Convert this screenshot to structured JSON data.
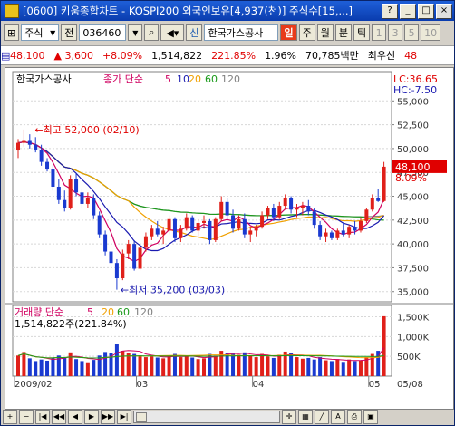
{
  "window": {
    "title": "[0600] 키움종합차트 - KOSPI200 외국인보유[4,937(천)] 주식수[15,...]",
    "buttons": [
      "?",
      "_",
      "□",
      "×"
    ]
  },
  "toolbar": {
    "market": "주식",
    "prev": "전",
    "code": "036460",
    "name": "한국가스공사",
    "periods": [
      "일",
      "주",
      "월",
      "분",
      "틱"
    ],
    "selected_period": "일",
    "nums": [
      "1",
      "3",
      "5",
      "10"
    ]
  },
  "quote": {
    "price": "48,100",
    "change": "▲ 3,600",
    "change_pct": "+8.09%",
    "volume": "1,514,822",
    "vol_ratio": "221.85%",
    "ratio": "1.96%",
    "amount": "70,785백만",
    "label": "최우선",
    "last": "48"
  },
  "chart": {
    "legend_main": "한국가스공사",
    "legend_ma": "종가 단순",
    "ma_periods": [
      "5",
      "10",
      "20",
      "60",
      "120"
    ],
    "ma_colors": [
      "#d00060",
      "#1a1ab0",
      "#f0a000",
      "#1a9a1a",
      "#808080"
    ],
    "lc_label": "LC:36.65",
    "hc_label": "HC:-7.50",
    "price_badge": "48,100",
    "pct_label": "8.09%",
    "high_label": "최고 52,000 (02/10)",
    "low_label": "최저 35,200 (03/03)",
    "vol_legend": "거래량 단순",
    "vol_periods": [
      "5",
      "20",
      "60",
      "120"
    ],
    "vol_value": "1,514,822주(221.84%)",
    "price_ticks": [
      "55,000",
      "52,500",
      "50,000",
      "47,500",
      "45,000",
      "42,500",
      "40,000",
      "37,500",
      "35,000"
    ],
    "vol_ticks": [
      "1,500K",
      "1,000K",
      "500K"
    ],
    "x_labels": [
      "2009/02",
      "03",
      "04",
      "05",
      "05/08"
    ]
  },
  "chart_data": {
    "type": "candlestick",
    "ylim": [
      34500,
      57500
    ],
    "vol_ylim": [
      0,
      1650000
    ],
    "candles": [
      {
        "o": 49800,
        "h": 51000,
        "l": 49000,
        "c": 50600
      },
      {
        "o": 50600,
        "h": 52000,
        "l": 50200,
        "c": 50800
      },
      {
        "o": 50800,
        "h": 51500,
        "l": 50000,
        "c": 50400
      },
      {
        "o": 50400,
        "h": 51200,
        "l": 49600,
        "c": 49900
      },
      {
        "o": 49900,
        "h": 50400,
        "l": 48200,
        "c": 48600
      },
      {
        "o": 48600,
        "h": 49000,
        "l": 47600,
        "c": 47800
      },
      {
        "o": 47800,
        "h": 48200,
        "l": 45600,
        "c": 46000
      },
      {
        "o": 46000,
        "h": 46800,
        "l": 44200,
        "c": 44600
      },
      {
        "o": 44600,
        "h": 45600,
        "l": 43400,
        "c": 43800
      },
      {
        "o": 43800,
        "h": 47200,
        "l": 43600,
        "c": 46800
      },
      {
        "o": 46800,
        "h": 47400,
        "l": 45000,
        "c": 45400
      },
      {
        "o": 45400,
        "h": 45800,
        "l": 43800,
        "c": 44200
      },
      {
        "o": 44200,
        "h": 45400,
        "l": 43800,
        "c": 44800
      },
      {
        "o": 44800,
        "h": 45200,
        "l": 42600,
        "c": 43000
      },
      {
        "o": 43000,
        "h": 43400,
        "l": 40600,
        "c": 41000
      },
      {
        "o": 41000,
        "h": 41400,
        "l": 38800,
        "c": 39200
      },
      {
        "o": 39200,
        "h": 39800,
        "l": 37600,
        "c": 38000
      },
      {
        "o": 38000,
        "h": 38400,
        "l": 35200,
        "c": 36400
      },
      {
        "o": 36400,
        "h": 39400,
        "l": 36200,
        "c": 39000
      },
      {
        "o": 39000,
        "h": 40400,
        "l": 38400,
        "c": 40000
      },
      {
        "o": 40000,
        "h": 40400,
        "l": 37200,
        "c": 37400
      },
      {
        "o": 37400,
        "h": 39800,
        "l": 37200,
        "c": 39600
      },
      {
        "o": 39600,
        "h": 41200,
        "l": 39200,
        "c": 40800
      },
      {
        "o": 40800,
        "h": 42000,
        "l": 40400,
        "c": 41600
      },
      {
        "o": 41600,
        "h": 42400,
        "l": 40800,
        "c": 41000
      },
      {
        "o": 41000,
        "h": 41800,
        "l": 40000,
        "c": 41400
      },
      {
        "o": 41400,
        "h": 43000,
        "l": 41000,
        "c": 42600
      },
      {
        "o": 42600,
        "h": 42800,
        "l": 40200,
        "c": 40600
      },
      {
        "o": 40600,
        "h": 42000,
        "l": 40200,
        "c": 41600
      },
      {
        "o": 41600,
        "h": 43200,
        "l": 41400,
        "c": 42800
      },
      {
        "o": 42800,
        "h": 43000,
        "l": 41200,
        "c": 41400
      },
      {
        "o": 41400,
        "h": 42600,
        "l": 40800,
        "c": 42200
      },
      {
        "o": 42200,
        "h": 43000,
        "l": 41600,
        "c": 42400
      },
      {
        "o": 42400,
        "h": 42600,
        "l": 40000,
        "c": 40400
      },
      {
        "o": 40400,
        "h": 42800,
        "l": 40200,
        "c": 42600
      },
      {
        "o": 42600,
        "h": 45000,
        "l": 42400,
        "c": 44400
      },
      {
        "o": 44400,
        "h": 44800,
        "l": 42600,
        "c": 43000
      },
      {
        "o": 43000,
        "h": 43600,
        "l": 41200,
        "c": 41600
      },
      {
        "o": 41600,
        "h": 43000,
        "l": 41400,
        "c": 42600
      },
      {
        "o": 42600,
        "h": 43200,
        "l": 40600,
        "c": 41000
      },
      {
        "o": 41000,
        "h": 41800,
        "l": 40200,
        "c": 41400
      },
      {
        "o": 41400,
        "h": 42000,
        "l": 40800,
        "c": 41800
      },
      {
        "o": 41800,
        "h": 43400,
        "l": 41600,
        "c": 43000
      },
      {
        "o": 43000,
        "h": 44000,
        "l": 42600,
        "c": 43800
      },
      {
        "o": 43800,
        "h": 44200,
        "l": 42400,
        "c": 42800
      },
      {
        "o": 42800,
        "h": 44400,
        "l": 42600,
        "c": 44000
      },
      {
        "o": 44000,
        "h": 45200,
        "l": 43600,
        "c": 44800
      },
      {
        "o": 44800,
        "h": 45000,
        "l": 43200,
        "c": 43600
      },
      {
        "o": 43600,
        "h": 44200,
        "l": 42800,
        "c": 43800
      },
      {
        "o": 43800,
        "h": 44400,
        "l": 43000,
        "c": 44000
      },
      {
        "o": 44000,
        "h": 44600,
        "l": 43000,
        "c": 43400
      },
      {
        "o": 43400,
        "h": 43800,
        "l": 41600,
        "c": 42000
      },
      {
        "o": 42000,
        "h": 42400,
        "l": 40400,
        "c": 40800
      },
      {
        "o": 40800,
        "h": 41600,
        "l": 40200,
        "c": 41200
      },
      {
        "o": 41200,
        "h": 41400,
        "l": 40400,
        "c": 40600
      },
      {
        "o": 40600,
        "h": 41600,
        "l": 40400,
        "c": 41400
      },
      {
        "o": 41400,
        "h": 42200,
        "l": 40800,
        "c": 41000
      },
      {
        "o": 41000,
        "h": 42000,
        "l": 40600,
        "c": 41800
      },
      {
        "o": 41800,
        "h": 42400,
        "l": 41000,
        "c": 41400
      },
      {
        "o": 41400,
        "h": 42800,
        "l": 41200,
        "c": 42400
      },
      {
        "o": 42400,
        "h": 43800,
        "l": 42200,
        "c": 43600
      },
      {
        "o": 43600,
        "h": 45200,
        "l": 43400,
        "c": 44800
      },
      {
        "o": 44800,
        "h": 45800,
        "l": 44400,
        "c": 44500
      },
      {
        "o": 44500,
        "h": 48600,
        "l": 44400,
        "c": 48100
      }
    ],
    "volumes": [
      520000,
      610000,
      450000,
      380000,
      420000,
      390000,
      470000,
      520000,
      480000,
      600000,
      430000,
      380000,
      350000,
      410000,
      520000,
      610000,
      580000,
      820000,
      640000,
      590000,
      560000,
      520000,
      480000,
      500000,
      470000,
      450000,
      520000,
      560000,
      480000,
      500000,
      470000,
      430000,
      450000,
      560000,
      520000,
      640000,
      580000,
      560000,
      540000,
      600000,
      520000,
      480000,
      560000,
      500000,
      460000,
      540000,
      620000,
      580000,
      480000,
      440000,
      460000,
      420000,
      480000,
      400000,
      380000,
      430000,
      360000,
      420000,
      380000,
      400000,
      480000,
      560000,
      640000,
      1514822
    ]
  }
}
